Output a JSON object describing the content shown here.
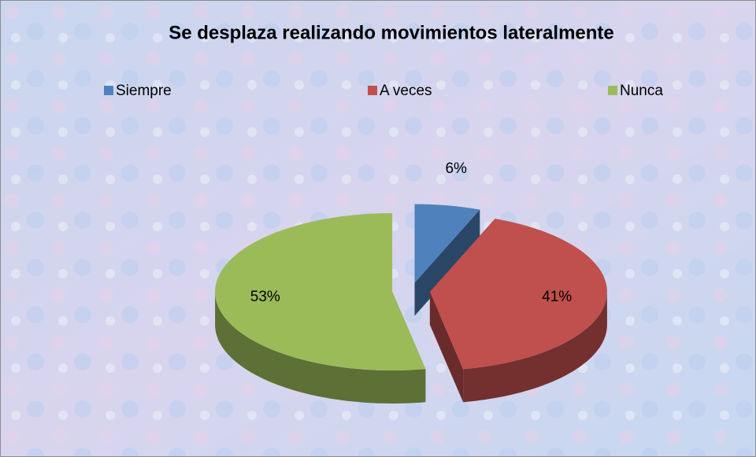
{
  "chart_data": {
    "type": "pie",
    "title": "Se desplaza realizando movimientos lateralmente",
    "categories": [
      "Siempre",
      "A veces",
      "Nunca"
    ],
    "values": [
      6,
      41,
      53
    ],
    "value_labels": [
      "6%",
      "41%",
      "53%"
    ],
    "colors": [
      "#4f81bd",
      "#c0504d",
      "#9bbb59"
    ],
    "legend": "top",
    "exploded": true,
    "3d": true
  }
}
